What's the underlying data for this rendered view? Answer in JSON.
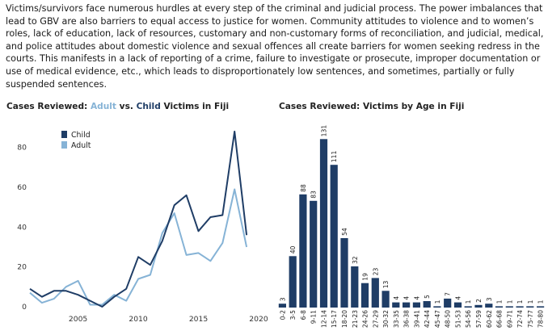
{
  "paragraph": "Victims/survivors face numerous hurdles at every step of the criminal and judicial process. The power imbalances that lead to GBV are also barriers to equal access to justice for women. Community attitudes to violence and to women’s roles, lack of education, lack of resources, customary and non-customary forms of reconciliation, and judicial, medical, and police attitudes about domestic violence and sexual offences all create barriers for women seeking redress in the courts. This manifests in a lack of reporting of a crime, failure to investigate or prosecute, improper documentation or use of medical evidence, etc., which leads to disproportionately low sentences, and sometimes, partially or fully suspended sentences.",
  "colors": {
    "child": "#1f3d66",
    "adult": "#86b3d6",
    "bar": "#1f3d66"
  },
  "chart_data": [
    {
      "type": "line",
      "title_parts": {
        "prefix": "Cases Reviewed: ",
        "adult": "Adult",
        "vs": " vs. ",
        "child": "Child",
        "suffix": " Victims in Fiji"
      },
      "x": [
        2001,
        2002,
        2003,
        2004,
        2005,
        2006,
        2007,
        2008,
        2009,
        2010,
        2011,
        2012,
        2013,
        2014,
        2015,
        2016,
        2017,
        2018,
        2019
      ],
      "series": [
        {
          "name": "Child",
          "values": [
            9,
            5,
            8,
            8,
            6,
            3,
            0,
            5,
            9,
            25,
            21,
            33,
            51,
            56,
            38,
            45,
            46,
            88,
            36
          ]
        },
        {
          "name": "Adult",
          "values": [
            7,
            2,
            4,
            10,
            13,
            1,
            1,
            6,
            3,
            14,
            16,
            37,
            47,
            26,
            27,
            23,
            32,
            59,
            30
          ]
        }
      ],
      "xticks": [
        2005,
        2010,
        2015,
        2020
      ],
      "yticks": [
        0,
        20,
        40,
        60,
        80
      ],
      "xlim": [
        2001,
        2020
      ],
      "ylim": [
        0,
        90
      ],
      "legend_position": "top-left",
      "grid": false
    },
    {
      "type": "bar",
      "title": "Cases Reviewed: Victims by Age in Fiji",
      "categories": [
        "0-2",
        "3-5",
        "6-8",
        "9-11",
        "12-14",
        "15-17",
        "18-20",
        "21-23",
        "24-26",
        "27-29",
        "30-32",
        "33-35",
        "36-38",
        "39-41",
        "42-44",
        "45-47",
        "48-50",
        "51-53",
        "54-56",
        "57-59",
        "60-62",
        "66-68",
        "69-71",
        "72-74",
        "75-77",
        "78-80"
      ],
      "values": [
        3,
        40,
        88,
        83,
        131,
        111,
        54,
        32,
        19,
        23,
        13,
        4,
        4,
        4,
        5,
        1,
        7,
        4,
        1,
        2,
        3,
        1,
        1,
        1,
        1,
        1
      ],
      "ylim": [
        0,
        140
      ],
      "grid": false
    }
  ]
}
